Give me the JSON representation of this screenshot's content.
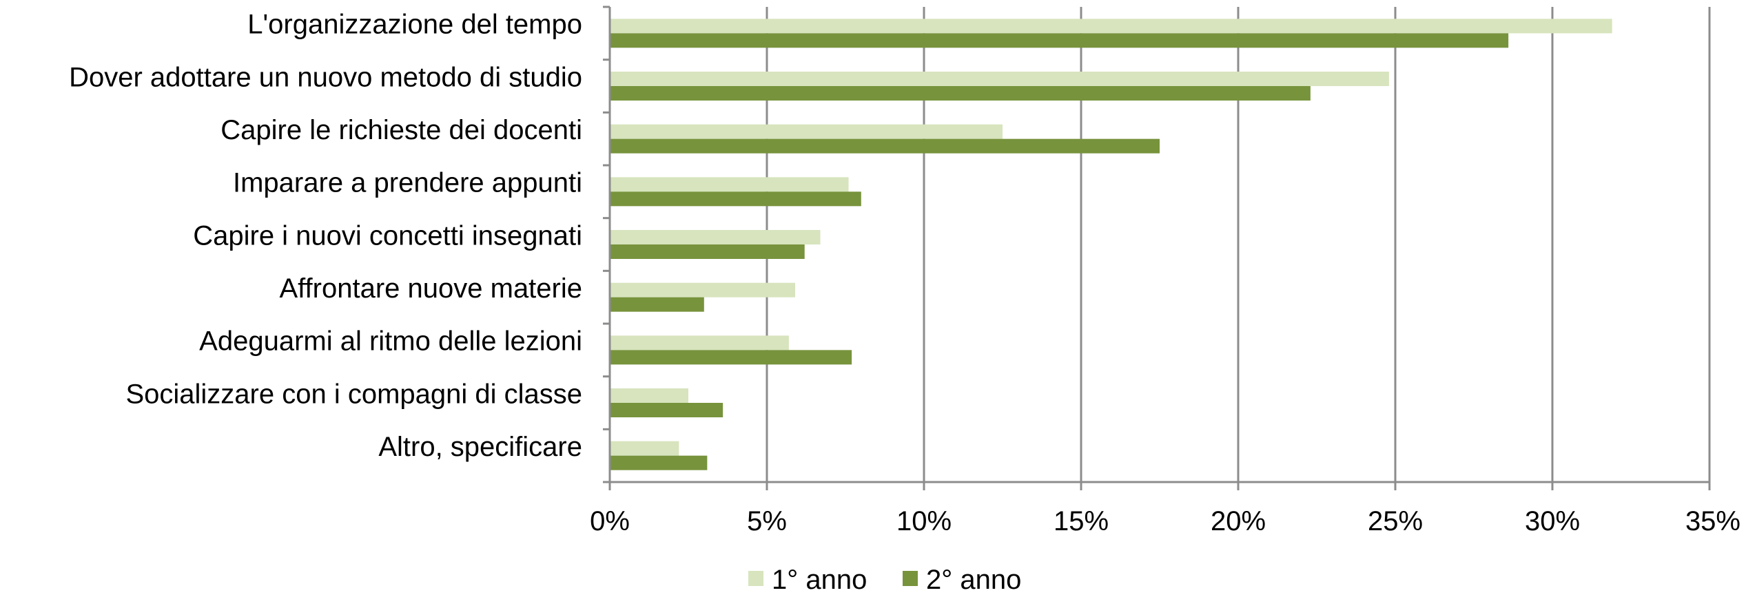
{
  "chart_data": {
    "type": "bar",
    "orientation": "horizontal",
    "categories": [
      "L'organizzazione del tempo",
      "Dover adottare un nuovo metodo di studio",
      "Capire le richieste dei docenti",
      "Imparare a prendere appunti",
      "Capire i nuovi concetti insegnati",
      "Affrontare nuove materie",
      "Adeguarmi al ritmo delle lezioni",
      "Socializzare con i compagni di classe",
      "Altro, specificare"
    ],
    "series": [
      {
        "name": "1° anno",
        "color": "#d7e4bd",
        "values": [
          31.9,
          24.8,
          12.5,
          7.6,
          6.7,
          5.9,
          5.7,
          2.5,
          2.2
        ]
      },
      {
        "name": "2° anno",
        "color": "#77933c",
        "values": [
          28.6,
          22.3,
          17.5,
          8.0,
          6.2,
          3.0,
          7.7,
          3.6,
          3.1
        ]
      }
    ],
    "xlim": [
      0,
      35
    ],
    "xticks": [
      0,
      5,
      10,
      15,
      20,
      25,
      30,
      35
    ],
    "xtick_labels": [
      "0%",
      "5%",
      "10%",
      "15%",
      "20%",
      "25%",
      "30%",
      "35%"
    ],
    "grid": "vertical",
    "legend_position": "bottom"
  }
}
